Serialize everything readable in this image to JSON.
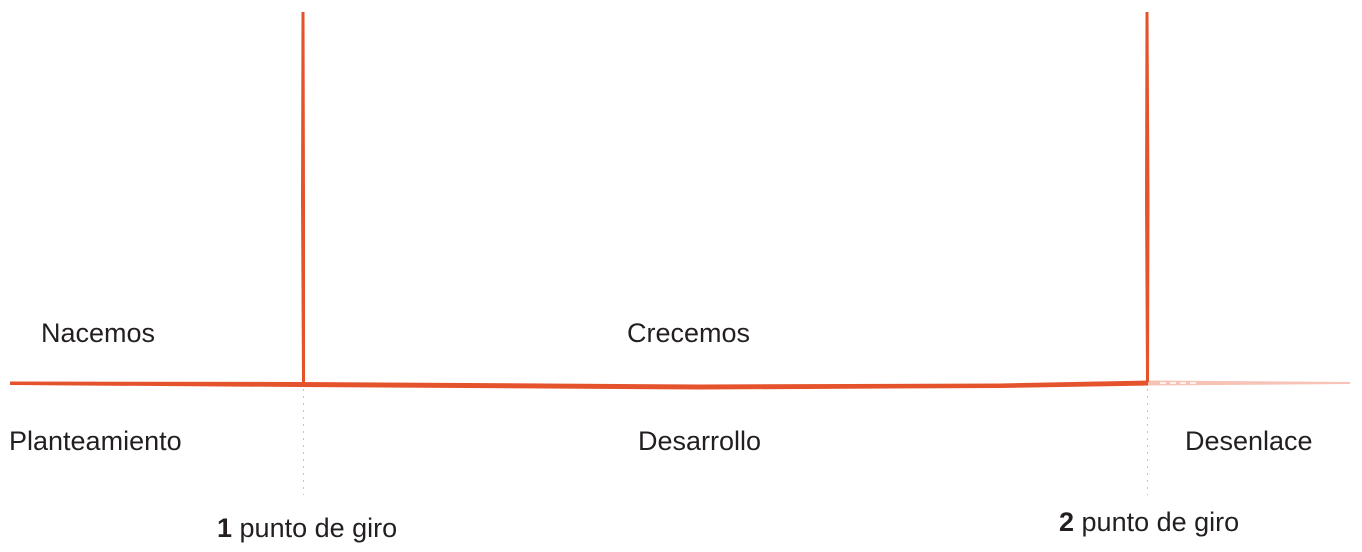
{
  "colors": {
    "line": "#e5532d",
    "text": "#231f20"
  },
  "labels": {
    "above_left": "Nacemos",
    "above_middle": "Crecemos",
    "below_left": "Planteamiento",
    "below_middle": "Desarrollo",
    "below_right": "Desenlace"
  },
  "turning_points": [
    {
      "number": "1",
      "text": " punto de giro"
    },
    {
      "number": "2",
      "text": " punto de giro"
    }
  ]
}
